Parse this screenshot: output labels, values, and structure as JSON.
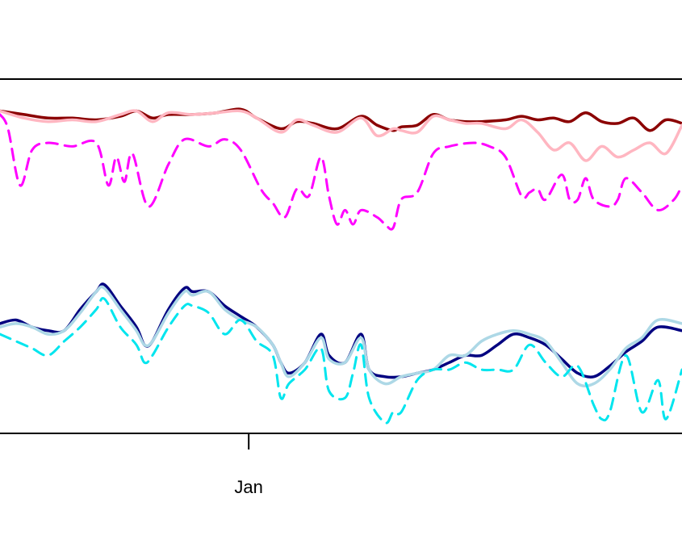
{
  "chart_data": {
    "type": "line",
    "x_ticks": [
      {
        "label": "Jan",
        "x": 31
      }
    ],
    "xlim": [
      0,
      85
    ],
    "ylim": [
      0,
      10
    ],
    "grid": false,
    "series": [
      {
        "color": "#8b0000",
        "dash": "solid",
        "width": 3.5,
        "x": [
          0,
          3,
          6,
          9,
          12,
          15,
          17,
          19,
          21,
          24,
          27,
          30,
          32,
          35,
          37,
          39,
          42,
          45,
          47,
          49,
          50,
          52,
          54,
          56,
          58,
          60,
          63,
          65,
          67,
          69,
          71,
          73,
          75,
          77,
          79,
          81,
          83,
          85
        ],
        "y": [
          9.1,
          9.0,
          8.9,
          8.9,
          8.85,
          8.95,
          9.1,
          8.9,
          9.0,
          9.0,
          9.05,
          9.15,
          8.9,
          8.6,
          8.8,
          8.75,
          8.6,
          8.95,
          8.7,
          8.55,
          8.65,
          8.7,
          9.0,
          8.85,
          8.8,
          8.8,
          8.85,
          8.95,
          8.85,
          8.9,
          8.8,
          9.05,
          8.8,
          8.75,
          8.9,
          8.55,
          8.85,
          8.75
        ]
      },
      {
        "color": "#ffb6c1",
        "dash": "solid",
        "width": 3.5,
        "x": [
          0,
          3,
          6,
          9,
          12,
          15,
          17,
          19,
          21,
          24,
          27,
          30,
          32,
          35,
          37,
          39,
          42,
          45,
          47,
          49,
          50,
          52,
          54,
          56,
          58,
          60,
          63,
          65,
          67,
          69,
          71,
          73,
          75,
          77,
          79,
          81,
          83,
          85
        ],
        "y": [
          9.1,
          8.9,
          8.8,
          8.85,
          8.8,
          9.0,
          9.1,
          8.8,
          9.05,
          9.0,
          9.05,
          9.1,
          8.9,
          8.5,
          8.85,
          8.7,
          8.5,
          8.9,
          8.4,
          8.6,
          8.55,
          8.5,
          8.95,
          8.85,
          8.75,
          8.75,
          8.6,
          8.85,
          8.5,
          8.0,
          8.2,
          7.7,
          8.1,
          7.8,
          8.0,
          8.2,
          7.9,
          8.7
        ]
      },
      {
        "color": "#ff00ff",
        "dash": "dashed",
        "width": 3,
        "x": [
          0,
          1,
          2.5,
          4,
          6,
          9,
          12,
          13.5,
          14.5,
          15.5,
          16.5,
          18.5,
          21,
          23,
          26,
          28,
          30,
          32.5,
          34,
          35.5,
          37,
          38.5,
          40,
          41,
          42,
          43,
          44,
          45,
          47,
          48,
          49,
          50,
          52,
          54,
          56,
          59,
          61,
          63,
          65,
          66,
          67,
          68,
          70,
          71,
          72,
          73,
          74,
          76,
          77,
          78,
          80,
          82,
          84,
          85
        ],
        "y": [
          9.0,
          8.6,
          7.0,
          8.0,
          8.2,
          8.1,
          8.2,
          7.0,
          7.8,
          7.1,
          7.9,
          6.4,
          7.6,
          8.3,
          8.1,
          8.3,
          8.0,
          6.9,
          6.5,
          6.1,
          6.9,
          6.7,
          7.8,
          6.7,
          5.9,
          6.3,
          5.9,
          6.3,
          6.1,
          5.9,
          5.8,
          6.6,
          6.8,
          7.9,
          8.1,
          8.2,
          8.1,
          7.8,
          6.7,
          6.8,
          6.9,
          6.6,
          7.3,
          6.6,
          6.6,
          7.2,
          6.6,
          6.4,
          6.6,
          7.2,
          6.8,
          6.3,
          6.6,
          7.0
        ]
      },
      {
        "color": "#000080",
        "dash": "solid",
        "width": 3.5,
        "x": [
          0,
          2,
          4,
          6,
          8,
          10,
          12,
          13,
          15,
          17,
          18,
          19,
          21,
          23,
          24,
          26,
          28,
          30,
          32,
          34,
          35,
          36,
          38,
          40,
          41,
          43,
          45,
          46,
          48,
          50,
          52,
          54,
          56,
          58,
          60,
          62,
          64,
          66,
          68,
          70,
          72,
          74,
          76,
          78,
          80,
          82,
          85
        ],
        "y": [
          3.1,
          3.2,
          3.0,
          2.9,
          2.9,
          3.5,
          4.0,
          4.2,
          3.6,
          3.0,
          2.5,
          2.6,
          3.5,
          4.1,
          4.0,
          4.0,
          3.6,
          3.3,
          3.0,
          2.5,
          2.0,
          1.7,
          2.0,
          2.8,
          2.2,
          2.0,
          2.8,
          1.8,
          1.6,
          1.6,
          1.7,
          1.8,
          2.0,
          2.2,
          2.2,
          2.5,
          2.8,
          2.7,
          2.5,
          2.1,
          1.7,
          1.6,
          1.9,
          2.3,
          2.6,
          3.0,
          2.9
        ]
      },
      {
        "color": "#add8e6",
        "dash": "solid",
        "width": 3.5,
        "x": [
          0,
          2,
          4,
          6,
          8,
          10,
          12,
          13,
          15,
          17,
          18,
          19,
          21,
          23,
          24,
          26,
          28,
          30,
          32,
          34,
          35,
          36,
          38,
          40,
          41,
          43,
          45,
          46,
          48,
          50,
          52,
          54,
          56,
          58,
          60,
          62,
          64,
          66,
          68,
          70,
          72,
          74,
          76,
          78,
          80,
          82,
          85
        ],
        "y": [
          3.0,
          3.1,
          3.0,
          2.8,
          2.9,
          3.4,
          4.0,
          4.1,
          3.5,
          2.9,
          2.5,
          2.6,
          3.4,
          4.0,
          3.9,
          4.0,
          3.5,
          3.2,
          3.0,
          2.5,
          2.0,
          1.6,
          2.0,
          2.7,
          2.1,
          2.0,
          2.7,
          1.8,
          1.4,
          1.6,
          1.7,
          1.8,
          2.2,
          2.2,
          2.6,
          2.8,
          2.9,
          2.8,
          2.6,
          2.0,
          1.4,
          1.4,
          1.8,
          2.4,
          2.7,
          3.2,
          3.1
        ]
      },
      {
        "color": "#00e5ee",
        "dash": "dashed",
        "width": 3,
        "x": [
          0,
          2,
          4,
          6,
          8,
          10,
          12,
          13,
          15,
          17,
          18,
          19,
          21,
          23,
          24,
          26,
          28,
          30,
          32,
          34,
          35,
          36,
          38,
          40,
          41,
          43,
          44,
          45,
          46,
          48,
          49,
          50,
          52,
          54,
          56,
          58,
          60,
          62,
          64,
          66,
          68,
          70,
          72,
          74,
          75,
          76,
          78,
          80,
          82,
          83,
          85
        ],
        "y": [
          2.8,
          2.6,
          2.4,
          2.2,
          2.6,
          3.0,
          3.5,
          3.8,
          3.0,
          2.5,
          2.0,
          2.2,
          3.0,
          3.6,
          3.6,
          3.4,
          2.8,
          3.2,
          2.6,
          2.2,
          1.0,
          1.4,
          1.8,
          2.4,
          1.2,
          1.0,
          1.7,
          2.5,
          1.0,
          0.3,
          0.6,
          0.6,
          1.5,
          1.8,
          1.8,
          2.0,
          1.8,
          1.8,
          1.8,
          2.5,
          2.0,
          1.6,
          1.9,
          0.8,
          0.4,
          0.6,
          2.2,
          0.6,
          1.5,
          0.4,
          1.8
        ]
      }
    ]
  }
}
